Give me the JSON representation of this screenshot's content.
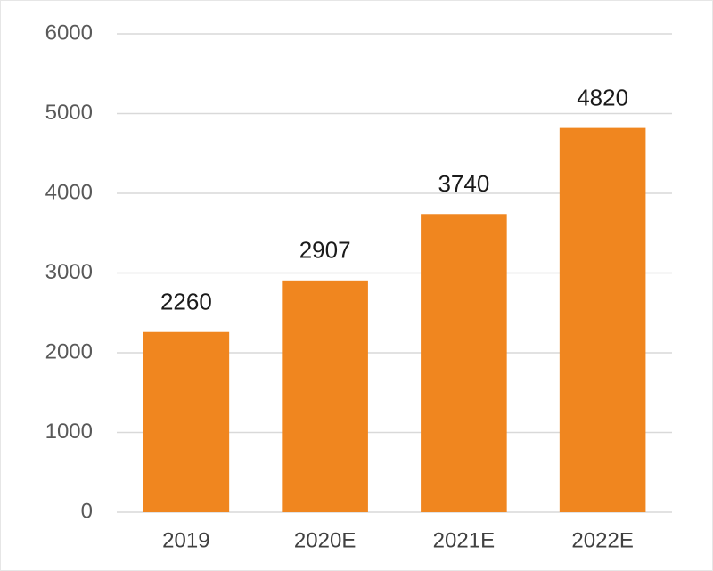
{
  "chart_data": {
    "type": "bar",
    "categories": [
      "2019",
      "2020E",
      "2021E",
      "2022E"
    ],
    "values": [
      2260,
      2907,
      3740,
      4820
    ],
    "color": "#f0861f",
    "ylim": [
      0,
      6000
    ],
    "yticks": [
      0,
      1000,
      2000,
      3000,
      4000,
      5000,
      6000
    ],
    "grid": true
  }
}
